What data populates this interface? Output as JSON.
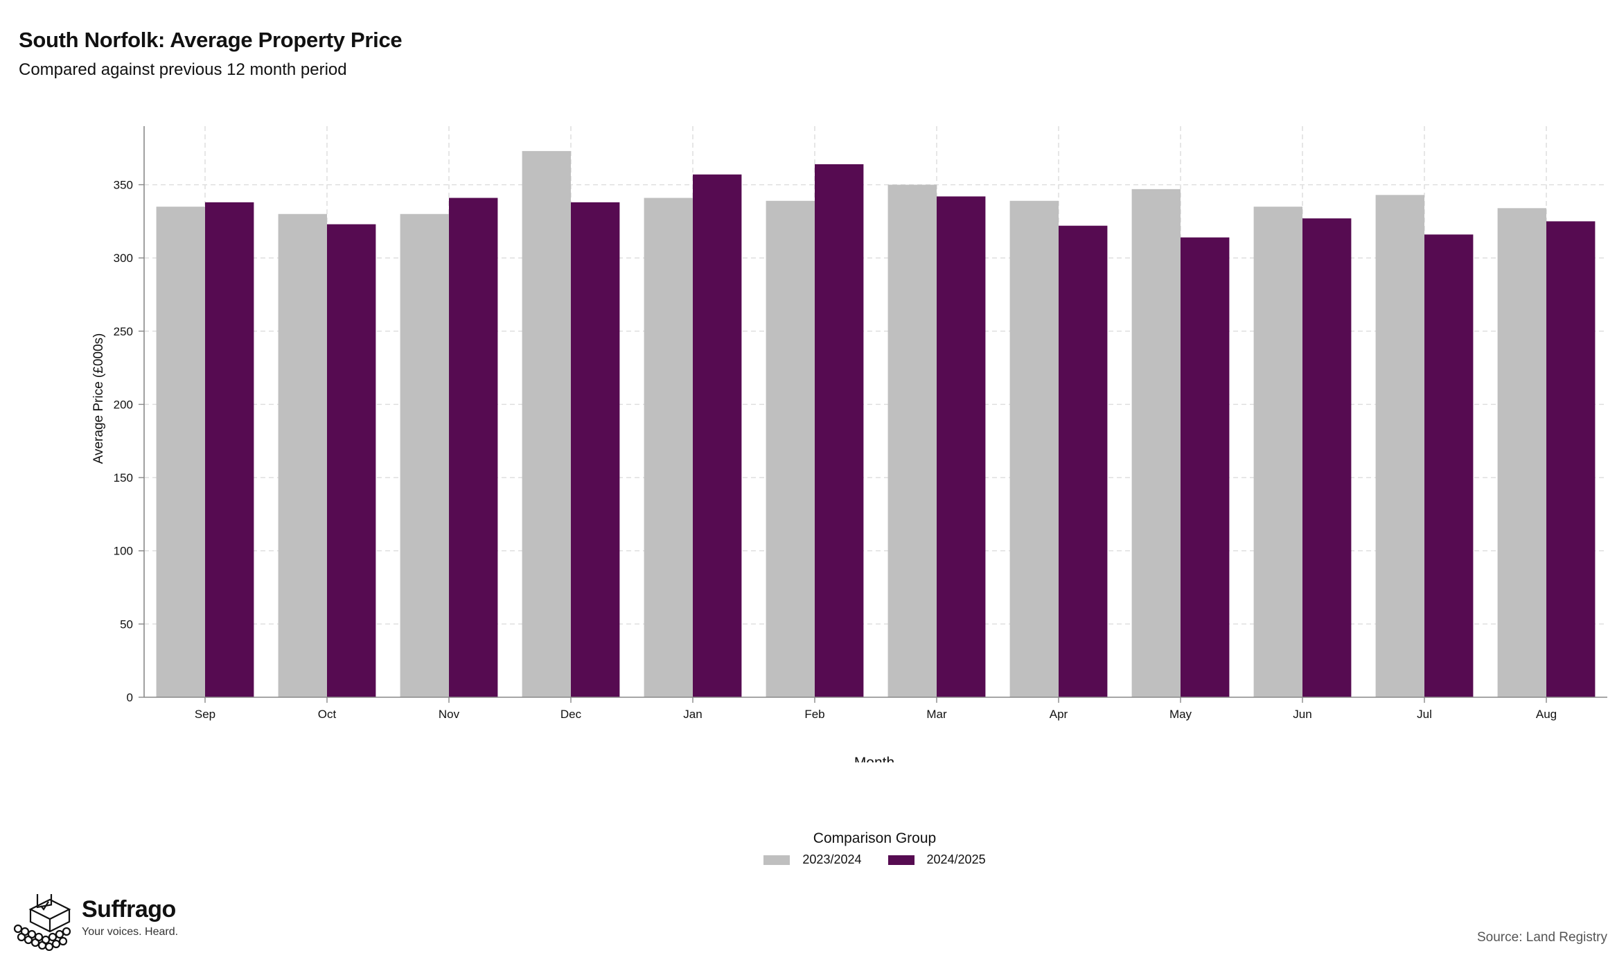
{
  "header": {
    "title": "South Norfolk: Average Property Price",
    "subtitle": "Compared against previous 12 month period"
  },
  "chart_data": {
    "type": "bar",
    "title": "South Norfolk: Average Property Price",
    "subtitle": "Compared against previous 12 month period",
    "xlabel": "Month",
    "ylabel": "Average Price (£000s)",
    "categories": [
      "Sep",
      "Oct",
      "Nov",
      "Dec",
      "Jan",
      "Feb",
      "Mar",
      "Apr",
      "May",
      "Jun",
      "Jul",
      "Aug"
    ],
    "ylim": [
      0,
      390
    ],
    "yticks": [
      0,
      50,
      100,
      150,
      200,
      250,
      300,
      350
    ],
    "grid": true,
    "legend_title": "Comparison Group",
    "legend_position": "bottom",
    "series": [
      {
        "name": "2023/2024",
        "color": "#bfbfbf",
        "values": [
          335,
          330,
          330,
          373,
          341,
          339,
          350,
          339,
          347,
          335,
          343,
          334
        ]
      },
      {
        "name": "2024/2025",
        "color": "#560b51",
        "values": [
          338,
          323,
          341,
          338,
          357,
          364,
          342,
          322,
          314,
          327,
          316,
          325
        ]
      }
    ]
  },
  "footer": {
    "brand_name": "Suffrago",
    "brand_tagline": "Your voices. Heard.",
    "source": "Source: Land Registry"
  },
  "icons": {
    "logo": "ballot-box-crowd-icon"
  }
}
